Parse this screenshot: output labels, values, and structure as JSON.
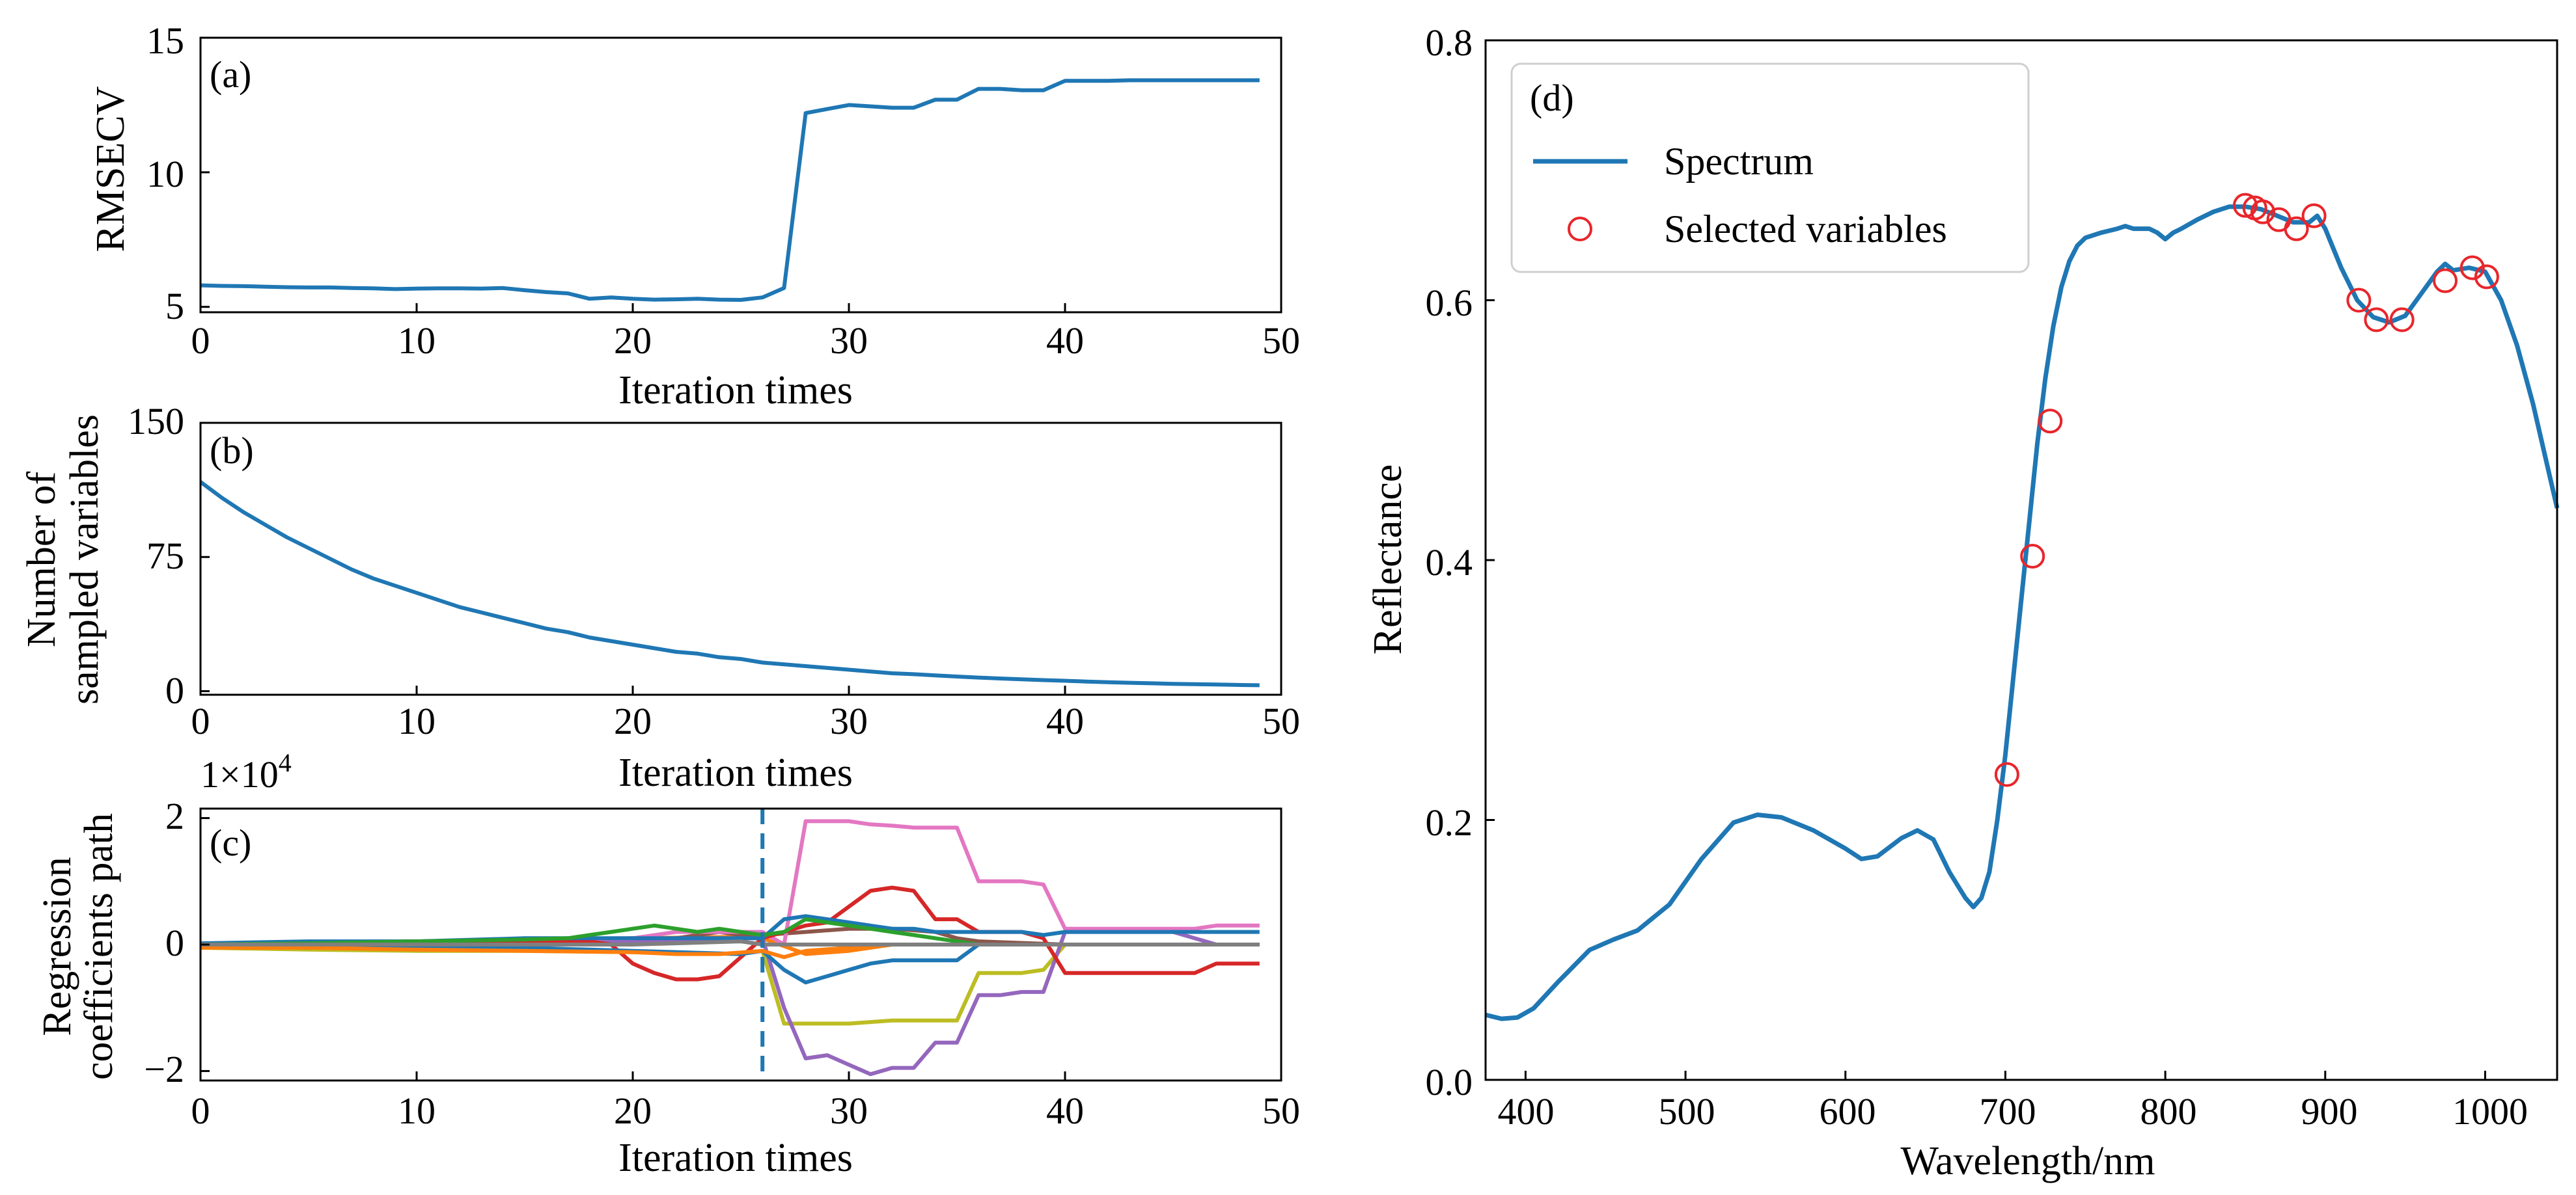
{
  "colors": {
    "spectrum": "#1f77b4",
    "marker": "#e8262b",
    "frame": "#000000",
    "dashed": "#1f77b4"
  },
  "chart_data": [
    {
      "id": "a",
      "type": "line",
      "panel_label": "(a)",
      "xlabel": "Iteration times",
      "ylabel": "RMSECV",
      "xlim": [
        0,
        50
      ],
      "ylim": [
        4.8,
        15
      ],
      "xticks": [
        0,
        10,
        20,
        30,
        40,
        50
      ],
      "yticks": [
        5,
        10,
        15
      ],
      "series": [
        {
          "name": "RMSECV",
          "x": [
            0,
            1,
            2,
            3,
            4,
            5,
            6,
            7,
            8,
            9,
            10,
            11,
            12,
            13,
            14,
            15,
            16,
            17,
            18,
            19,
            20,
            21,
            22,
            23,
            24,
            25,
            26,
            27,
            28,
            29,
            30,
            31,
            32,
            33,
            34,
            35,
            36,
            37,
            38,
            39,
            40,
            41,
            42,
            43,
            44,
            45,
            46,
            47,
            48,
            49
          ],
          "y": [
            5.8,
            5.78,
            5.77,
            5.75,
            5.73,
            5.72,
            5.72,
            5.7,
            5.69,
            5.66,
            5.68,
            5.69,
            5.69,
            5.68,
            5.7,
            5.62,
            5.55,
            5.5,
            5.3,
            5.35,
            5.3,
            5.27,
            5.28,
            5.3,
            5.27,
            5.26,
            5.35,
            5.7,
            12.2,
            12.35,
            12.5,
            12.45,
            12.4,
            12.4,
            12.7,
            12.7,
            13.1,
            13.1,
            13.05,
            13.05,
            13.4,
            13.4,
            13.4,
            13.42,
            13.42,
            13.42,
            13.42,
            13.42,
            13.42,
            13.42
          ]
        }
      ]
    },
    {
      "id": "b",
      "type": "line",
      "panel_label": "(b)",
      "xlabel": "Iteration times",
      "ylabel_line1": "Number of",
      "ylabel_line2": "sampled variables",
      "xlim": [
        0,
        50
      ],
      "ylim": [
        -2,
        150
      ],
      "xticks": [
        0,
        10,
        20,
        30,
        40,
        50
      ],
      "yticks": [
        0,
        75,
        150
      ],
      "series": [
        {
          "name": "Number of sampled variables",
          "x": [
            0,
            1,
            2,
            3,
            4,
            5,
            6,
            7,
            8,
            9,
            10,
            11,
            12,
            13,
            14,
            15,
            16,
            17,
            18,
            19,
            20,
            21,
            22,
            23,
            24,
            25,
            26,
            27,
            28,
            29,
            30,
            31,
            32,
            33,
            34,
            35,
            36,
            37,
            38,
            39,
            40,
            41,
            42,
            43,
            44,
            45,
            46,
            47,
            48,
            49
          ],
          "y": [
            117,
            108,
            100,
            93,
            86,
            80,
            74,
            68,
            63,
            59,
            55,
            51,
            47,
            44,
            41,
            38,
            35,
            33,
            30,
            28,
            26,
            24,
            22,
            21,
            19,
            18,
            16,
            15,
            14,
            13,
            12,
            11,
            10,
            9.5,
            8.8,
            8.2,
            7.6,
            7.1,
            6.6,
            6.2,
            5.8,
            5.4,
            5.0,
            4.7,
            4.4,
            4.1,
            3.9,
            3.7,
            3.5,
            3.3
          ]
        }
      ]
    },
    {
      "id": "c",
      "type": "line",
      "panel_label": "(c)",
      "xlabel": "Iteration times",
      "ylabel_line1": "Regression",
      "ylabel_line2": "coefficients path",
      "exponent_label": "1×10",
      "exponent_power": "4",
      "xlim": [
        0,
        50
      ],
      "ylim": [
        -2.15,
        2.15
      ],
      "xticks": [
        0,
        10,
        20,
        30,
        40,
        50
      ],
      "yticks": [
        -2,
        0,
        2
      ],
      "ytick_labels": [
        "−2",
        "0",
        "2"
      ],
      "vline_x": 26,
      "series": [
        {
          "color": "#ff7f0e",
          "x": [
            0,
            5,
            10,
            15,
            20,
            25,
            26,
            28,
            30,
            32,
            35,
            40,
            49
          ],
          "y": [
            0.02,
            0.03,
            0.04,
            0.05,
            0.1,
            0.12,
            0.1,
            -0.15,
            -0.1,
            0,
            0,
            0,
            0
          ]
        },
        {
          "color": "#8c564b",
          "x": [
            0,
            5,
            10,
            15,
            20,
            22,
            24,
            25,
            26,
            28,
            30,
            32,
            34,
            35,
            36,
            40,
            45,
            49
          ],
          "y": [
            0,
            0.02,
            0.05,
            0.05,
            0.05,
            0.1,
            0.2,
            0.15,
            0.15,
            0.2,
            0.25,
            0.25,
            0.2,
            0.1,
            0.05,
            0,
            0,
            0
          ]
        },
        {
          "color": "#bcbd22",
          "x": [
            0,
            5,
            10,
            15,
            20,
            25,
            26,
            27,
            28,
            30,
            32,
            34,
            35,
            36,
            38,
            39,
            40,
            49
          ],
          "y": [
            -0.05,
            -0.08,
            -0.1,
            -0.1,
            -0.12,
            -0.15,
            -0.1,
            -1.25,
            -1.25,
            -1.25,
            -1.2,
            -1.2,
            -1.2,
            -0.45,
            -0.45,
            -0.4,
            0,
            0
          ]
        },
        {
          "color": "#9467bd",
          "x": [
            0,
            5,
            10,
            15,
            20,
            25,
            26,
            27,
            28,
            29,
            30,
            31,
            32,
            33,
            34,
            35,
            36,
            37,
            38,
            39,
            40,
            41,
            45,
            47,
            48,
            49
          ],
          "y": [
            0,
            0.02,
            0.02,
            0.02,
            0.05,
            0.1,
            0.1,
            -1.0,
            -1.8,
            -1.75,
            -1.9,
            -2.05,
            -1.95,
            -1.95,
            -1.55,
            -1.55,
            -0.8,
            -0.8,
            -0.75,
            -0.75,
            0.2,
            0.2,
            0.2,
            0,
            0,
            0
          ]
        },
        {
          "color": "#e377c2",
          "x": [
            0,
            5,
            10,
            15,
            20,
            22,
            24,
            25,
            26,
            27,
            28,
            30,
            31,
            32,
            33,
            34,
            35,
            36,
            38,
            39,
            40,
            42,
            45,
            46,
            47,
            48,
            49
          ],
          "y": [
            0.02,
            0.03,
            0.05,
            0.08,
            0.1,
            0.2,
            0.2,
            0.2,
            0.2,
            0,
            1.95,
            1.95,
            1.9,
            1.88,
            1.85,
            1.85,
            1.85,
            1.0,
            1.0,
            0.95,
            0.25,
            0.25,
            0.25,
            0.25,
            0.3,
            0.3,
            0.3
          ]
        },
        {
          "color": "#d62728",
          "x": [
            0,
            5,
            10,
            15,
            18,
            19,
            20,
            21,
            22,
            23,
            24,
            25,
            26,
            27,
            28,
            29,
            30,
            31,
            32,
            33,
            34,
            35,
            36,
            38,
            39,
            40,
            41,
            45,
            46,
            47,
            48,
            49
          ],
          "y": [
            0,
            0.02,
            0.02,
            0.05,
            0.05,
            0,
            -0.3,
            -0.45,
            -0.55,
            -0.55,
            -0.5,
            -0.2,
            0.1,
            0.2,
            0.3,
            0.35,
            0.6,
            0.85,
            0.9,
            0.85,
            0.4,
            0.4,
            0.2,
            0.2,
            0.1,
            -0.45,
            -0.45,
            -0.45,
            -0.45,
            -0.3,
            -0.3,
            -0.3
          ]
        },
        {
          "color": "#1f77b4",
          "x": [
            0,
            5,
            10,
            15,
            20,
            25,
            26,
            27,
            28,
            29,
            30,
            31,
            32,
            33,
            34,
            35,
            36,
            38,
            39,
            40,
            45,
            49
          ],
          "y": [
            0.02,
            0.05,
            0.05,
            0.1,
            0.1,
            0.1,
            0.1,
            0.4,
            0.45,
            0.4,
            0.35,
            0.3,
            0.25,
            0.25,
            0.2,
            0.2,
            0.2,
            0.2,
            0.15,
            0.2,
            0.2,
            0.2
          ]
        },
        {
          "color": "#1f77b4",
          "x": [
            0,
            5,
            10,
            15,
            20,
            25,
            26,
            27,
            28,
            29,
            30,
            31,
            32,
            33,
            34,
            35,
            36,
            40,
            49
          ],
          "y": [
            0,
            -0.05,
            -0.05,
            -0.05,
            -0.1,
            -0.15,
            -0.1,
            -0.4,
            -0.6,
            -0.5,
            -0.4,
            -0.3,
            -0.25,
            -0.25,
            -0.25,
            -0.25,
            0,
            0,
            0
          ]
        },
        {
          "color": "#2ca02c",
          "x": [
            0,
            5,
            10,
            15,
            17,
            18,
            19,
            20,
            21,
            22,
            23,
            24,
            25,
            26,
            27,
            28,
            29,
            30,
            31,
            32,
            33,
            34,
            35,
            36,
            40,
            49
          ],
          "y": [
            0,
            0.02,
            0.05,
            0.08,
            0.1,
            0.15,
            0.2,
            0.25,
            0.3,
            0.25,
            0.2,
            0.25,
            0.2,
            0.15,
            0.2,
            0.4,
            0.35,
            0.3,
            0.25,
            0.2,
            0.15,
            0.1,
            0.05,
            0,
            0,
            0
          ]
        },
        {
          "color": "#ff7f0e",
          "x": [
            0,
            5,
            10,
            15,
            20,
            22,
            24,
            26,
            27,
            28,
            30,
            32,
            35,
            40,
            49
          ],
          "y": [
            -0.05,
            -0.05,
            -0.08,
            -0.1,
            -0.12,
            -0.15,
            -0.15,
            -0.1,
            -0.2,
            -0.1,
            -0.05,
            0,
            0,
            0,
            0
          ]
        },
        {
          "color": "#7f7f7f",
          "x": [
            0,
            10,
            20,
            25,
            26,
            28,
            30,
            35,
            40,
            45,
            49
          ],
          "y": [
            0,
            0,
            0,
            0.05,
            0,
            0,
            0,
            0,
            0,
            0,
            0
          ]
        }
      ]
    },
    {
      "id": "d",
      "type": "line",
      "panel_label": "(d)",
      "xlabel": "Wavelength/nm",
      "ylabel": "Reflectance",
      "xlim": [
        375,
        1045
      ],
      "ylim": [
        0,
        0.8
      ],
      "xticks": [
        400,
        500,
        600,
        700,
        800,
        900,
        1000
      ],
      "yticks": [
        0.0,
        0.2,
        0.4,
        0.6,
        0.8
      ],
      "ytick_labels": [
        "0.0",
        "0.2",
        "0.4",
        "0.6",
        "0.8"
      ],
      "legend": {
        "location": "top-left",
        "entries": [
          "Spectrum",
          "Selected variables"
        ]
      },
      "spectrum": {
        "name": "Spectrum",
        "x": [
          375,
          385,
          395,
          405,
          420,
          440,
          455,
          470,
          490,
          510,
          530,
          545,
          560,
          580,
          600,
          610,
          620,
          635,
          645,
          655,
          665,
          675,
          680,
          685,
          690,
          695,
          700,
          705,
          710,
          715,
          720,
          725,
          730,
          735,
          740,
          745,
          750,
          755,
          760,
          770,
          775,
          780,
          790,
          795,
          800,
          805,
          810,
          820,
          830,
          840,
          850,
          860,
          870,
          880,
          890,
          895,
          900,
          910,
          920,
          930,
          940,
          950,
          960,
          970,
          975,
          980,
          990,
          1000,
          1010,
          1020,
          1030,
          1045
        ],
        "y": [
          0.05,
          0.047,
          0.048,
          0.055,
          0.075,
          0.1,
          0.108,
          0.115,
          0.135,
          0.17,
          0.198,
          0.204,
          0.202,
          0.192,
          0.178,
          0.17,
          0.172,
          0.186,
          0.192,
          0.185,
          0.16,
          0.14,
          0.133,
          0.14,
          0.16,
          0.2,
          0.25,
          0.31,
          0.37,
          0.43,
          0.49,
          0.54,
          0.58,
          0.61,
          0.63,
          0.642,
          0.648,
          0.65,
          0.652,
          0.655,
          0.657,
          0.655,
          0.655,
          0.652,
          0.647,
          0.652,
          0.655,
          0.662,
          0.668,
          0.672,
          0.672,
          0.67,
          0.665,
          0.66,
          0.66,
          0.665,
          0.655,
          0.625,
          0.6,
          0.587,
          0.583,
          0.588,
          0.605,
          0.622,
          0.628,
          0.623,
          0.625,
          0.622,
          0.6,
          0.565,
          0.52,
          0.44
        ]
      },
      "selected": {
        "name": "Selected variables",
        "x": [
          701,
          717,
          728,
          850,
          856,
          861,
          871,
          882,
          893,
          921,
          932,
          948,
          975,
          992,
          1001
        ],
        "y": [
          0.235,
          0.403,
          0.507,
          0.673,
          0.671,
          0.668,
          0.662,
          0.655,
          0.665,
          0.6,
          0.585,
          0.585,
          0.615,
          0.625,
          0.618
        ]
      }
    }
  ]
}
